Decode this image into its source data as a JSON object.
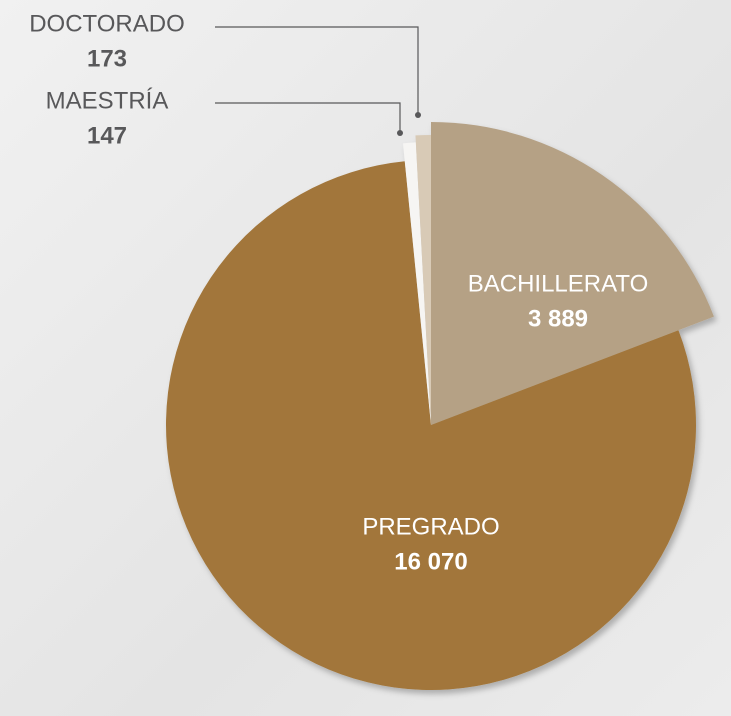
{
  "chart_data": {
    "type": "pie",
    "categories": [
      "BACHILLERATO",
      "PREGRADO",
      "MAESTRÍA",
      "DOCTORADO"
    ],
    "values": [
      3889,
      16070,
      147,
      173
    ],
    "value_labels": [
      "3 889",
      "16 070",
      "147",
      "173"
    ],
    "colors": [
      "#b5a185",
      "#a2763a",
      "#f6f5f3",
      "#d8cab6"
    ]
  }
}
